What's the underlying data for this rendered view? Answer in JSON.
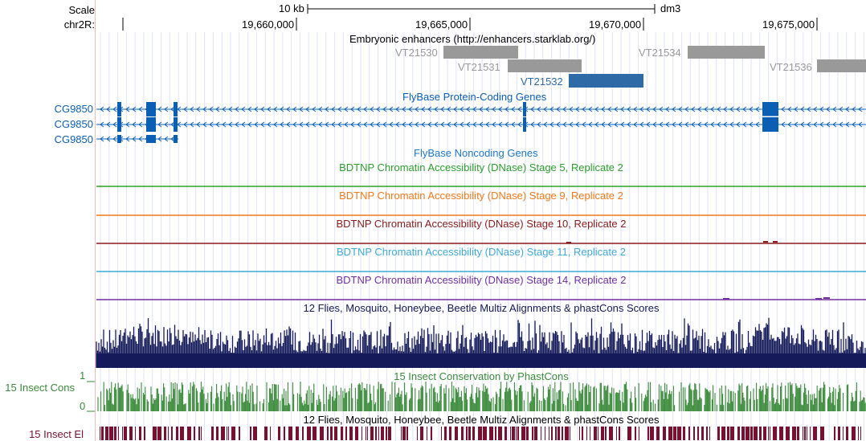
{
  "ruler": {
    "scale_label": "Scale",
    "chrom_label": "chr2R:",
    "scale_bar_text": "10 kb",
    "assembly": "dm3",
    "ticks": [
      "19,660,000",
      "19,665,000",
      "19,670,000",
      "19,675,000"
    ]
  },
  "tracks": {
    "enhancers": {
      "title": "Embryonic enhancers (http://enhancers.starklab.org/)",
      "items": [
        {
          "name": "VT21530",
          "color": "#999999"
        },
        {
          "name": "VT21531",
          "color": "#999999"
        },
        {
          "name": "VT21532",
          "color": "#2e6aa6"
        },
        {
          "name": "VT21534",
          "color": "#999999"
        },
        {
          "name": "VT21536",
          "color": "#999999"
        }
      ]
    },
    "protein_genes": {
      "title": "FlyBase Protein-Coding Genes",
      "color": "#0a5fb4",
      "genes": [
        "CG9850",
        "CG9850",
        "CG9850"
      ]
    },
    "noncoding": {
      "title": "FlyBase Noncoding Genes",
      "color": "#1f78c8"
    },
    "dnase": [
      {
        "title": "BDTNP Chromatin Accessibility (DNase) Stage 5, Replicate 2",
        "color": "#2ca02c"
      },
      {
        "title": "BDTNP Chromatin Accessibility (DNase) Stage 9, Replicate 2",
        "color": "#f07a1a"
      },
      {
        "title": "BDTNP Chromatin Accessibility (DNase) Stage 10, Replicate 2",
        "color": "#8b1a1a"
      },
      {
        "title": "BDTNP Chromatin Accessibility (DNase) Stage 11, Replicate 2",
        "color": "#3fa9d8"
      },
      {
        "title": "BDTNP Chromatin Accessibility (DNase) Stage 14, Replicate 2",
        "color": "#7030a0"
      }
    ],
    "multiz": {
      "title": "12 Flies, Mosquito, Honeybee, Beetle Multiz Alignments & phastCons Scores",
      "color": "#141a5a"
    },
    "insect_cons": {
      "title": "15 Insect Conservation by PhastCons",
      "label": "15 Insect Cons",
      "y_max": "1",
      "y_min": "0",
      "color": "#3a8a3a"
    },
    "insect_el": {
      "title": "12 Flies, Mosquito, Honeybee, Beetle Multiz Alignments & phastCons Scores",
      "label": "15 Insect El",
      "color": "#7a1030"
    }
  }
}
